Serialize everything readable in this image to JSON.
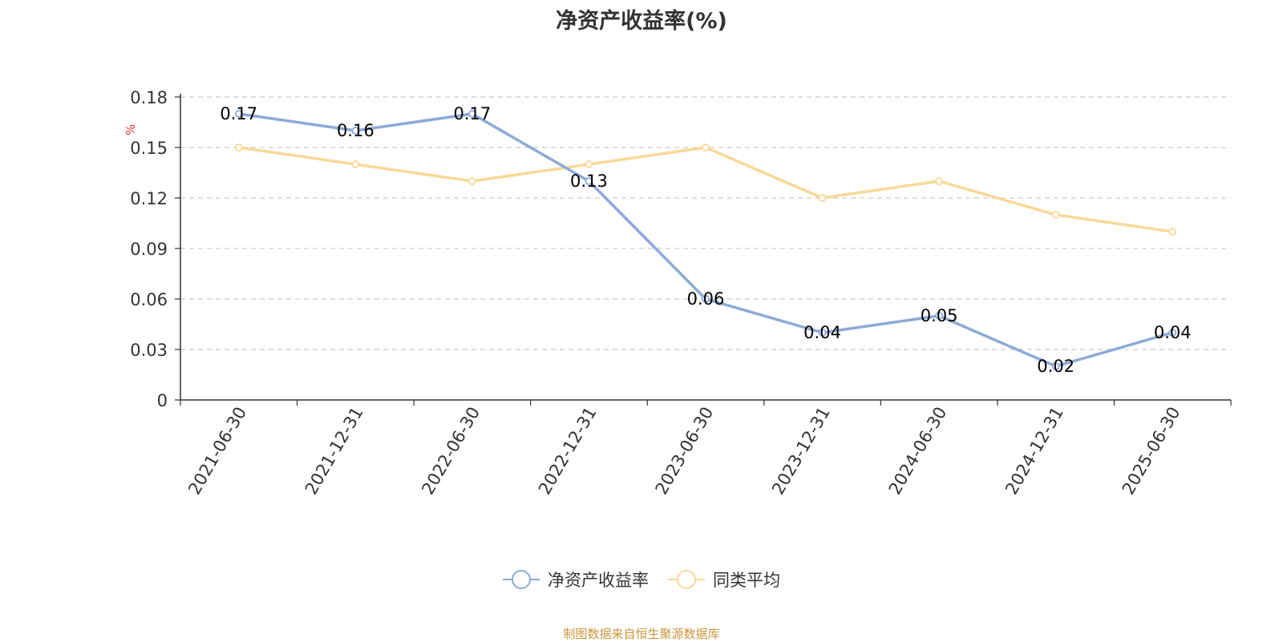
{
  "chart_data": {
    "type": "line",
    "title": "净资产收益率(%)",
    "ylabel": "%",
    "xlabel": "",
    "categories": [
      "2021-06-30",
      "2021-12-31",
      "2022-06-30",
      "2022-12-31",
      "2023-06-30",
      "2023-12-31",
      "2024-06-30",
      "2024-12-31",
      "2025-06-30"
    ],
    "ylim": [
      0,
      0.18
    ],
    "yticks": [
      "0",
      "0.03",
      "0.06",
      "0.09",
      "0.12",
      "0.15",
      "0.18"
    ],
    "grid": true,
    "legend_position": "bottom",
    "series": [
      {
        "name": "净资产收益率",
        "color": "#8caad7",
        "values": [
          0.17,
          0.16,
          0.17,
          0.13,
          0.06,
          0.04,
          0.05,
          0.02,
          0.04
        ],
        "labels": [
          "0.17",
          "0.16",
          "0.17",
          "0.13",
          "0.06",
          "0.04",
          "0.05",
          "0.02",
          "0.04"
        ],
        "show_labels": true
      },
      {
        "name": "同类平均",
        "color": "#fad896",
        "values": [
          0.15,
          0.14,
          0.13,
          0.14,
          0.15,
          0.12,
          0.13,
          0.11,
          0.1
        ],
        "show_labels": false
      }
    ]
  },
  "source_note": "制图数据来自恒生聚源数据库"
}
